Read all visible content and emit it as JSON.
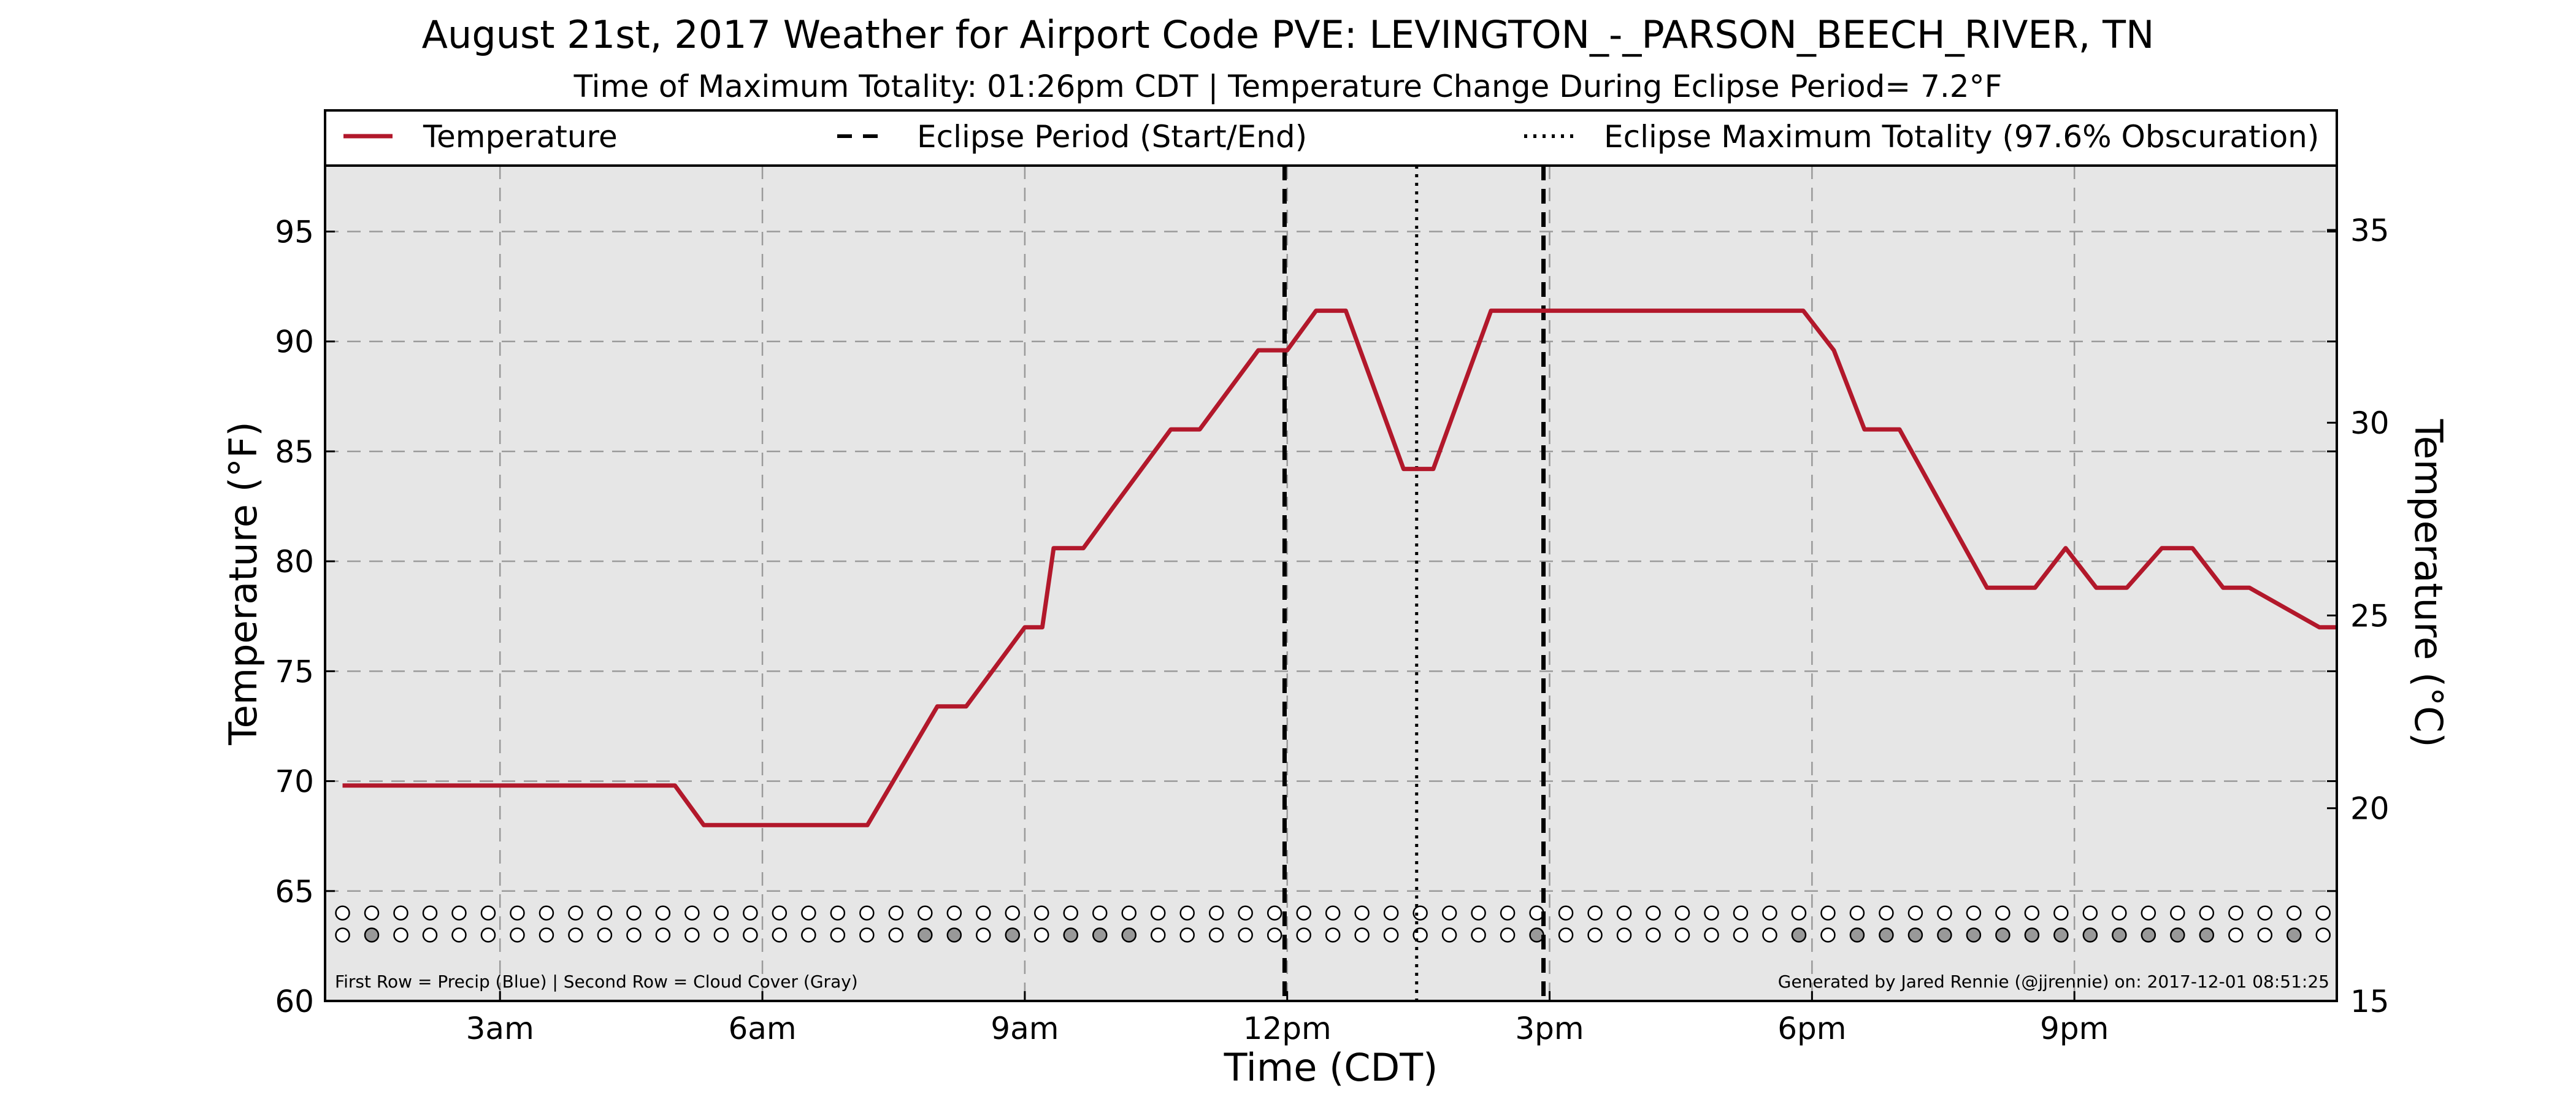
{
  "chart_data": {
    "type": "line",
    "title": "August 21st, 2017 Weather for Airport Code PVE: LEVINGTON_-_PARSON_BEECH_RIVER, TN",
    "subtitle": "Time of Maximum Totality: 01:26pm CDT | Temperature Change During Eclipse Period= 7.2°F",
    "xlabel": "Time (CDT)",
    "ylabel": "Temperature (°F)",
    "ylabel_right": "Temperature (°C)",
    "x_unit": "hours after midnight CDT",
    "xlim": [
      1.0,
      24.0
    ],
    "ylim": [
      60,
      98
    ],
    "ylim_right": [
      15,
      36.67
    ],
    "grid": true,
    "legend_placement": "top",
    "x_ticks": [
      {
        "value": 3,
        "label": "3am"
      },
      {
        "value": 6,
        "label": "6am"
      },
      {
        "value": 9,
        "label": "9am"
      },
      {
        "value": 12,
        "label": "12pm"
      },
      {
        "value": 15,
        "label": "3pm"
      },
      {
        "value": 18,
        "label": "6pm"
      },
      {
        "value": 21,
        "label": "9pm"
      }
    ],
    "y_ticks": [
      60,
      65,
      70,
      75,
      80,
      85,
      90,
      95
    ],
    "y_ticks_right": [
      15,
      20,
      25,
      30,
      35
    ],
    "legend": [
      {
        "key": "temperature",
        "label": "Temperature",
        "style": "solid",
        "color": "#b2182b"
      },
      {
        "key": "eclipse_period",
        "label": "Eclipse Period (Start/End)",
        "style": "dashed",
        "color": "#000000"
      },
      {
        "key": "max_totality",
        "label": "Eclipse Maximum Totality (97.6% Obscuration)",
        "style": "dotted",
        "color": "#000000"
      }
    ],
    "series": [
      {
        "name": "Temperature",
        "color": "#b2182b",
        "x": [
          1.2,
          2.2,
          3.2,
          4.2,
          5.0,
          5.33,
          6.2,
          7.2,
          8.0,
          8.33,
          9.0,
          9.2,
          9.33,
          9.67,
          10.0,
          10.67,
          11.0,
          11.67,
          12.0,
          12.33,
          12.67,
          13.0,
          13.33,
          13.67,
          14.0,
          14.33,
          14.67,
          15.0,
          16.0,
          17.0,
          17.9,
          18.25,
          18.6,
          19.0,
          20.0,
          20.55,
          20.9,
          21.25,
          21.6,
          22.0,
          22.35,
          22.7,
          23.0,
          23.8,
          24.0
        ],
        "values": [
          69.8,
          69.8,
          69.8,
          69.8,
          69.8,
          68.0,
          68.0,
          68.0,
          73.4,
          73.4,
          77.0,
          77.0,
          80.6,
          80.6,
          82.4,
          86.0,
          86.0,
          89.6,
          89.6,
          91.4,
          91.4,
          87.8,
          84.2,
          84.2,
          87.8,
          91.4,
          91.4,
          91.4,
          91.4,
          91.4,
          91.4,
          89.6,
          86.0,
          86.0,
          78.8,
          78.8,
          80.6,
          78.8,
          78.8,
          80.6,
          80.6,
          78.8,
          78.8,
          77.0,
          77.0
        ]
      }
    ],
    "eclipse_start": 11.97,
    "eclipse_end": 14.93,
    "max_totality": 13.48,
    "dot_rows": {
      "x_start": 1.2,
      "x_step": 0.333,
      "count": 69,
      "precip_row_value": 64.0,
      "cloud_row_value": 63.0,
      "precip_filled_color": "#1f4e9e",
      "cloud_filled_color": "#999999",
      "empty_color": "#ffffff",
      "precip_filled": [],
      "cloud_filled": [
        1,
        20,
        21,
        23,
        25,
        26,
        27,
        41,
        50,
        52,
        53,
        54,
        55,
        56,
        57,
        58,
        59,
        60,
        61,
        62,
        63,
        64,
        67
      ]
    },
    "footnote_left": "First Row = Precip (Blue) | Second Row = Cloud Cover (Gray)",
    "footnote_right": "Generated by Jared Rennie (@jjrennie) on: 2017-12-01 08:51:25"
  }
}
